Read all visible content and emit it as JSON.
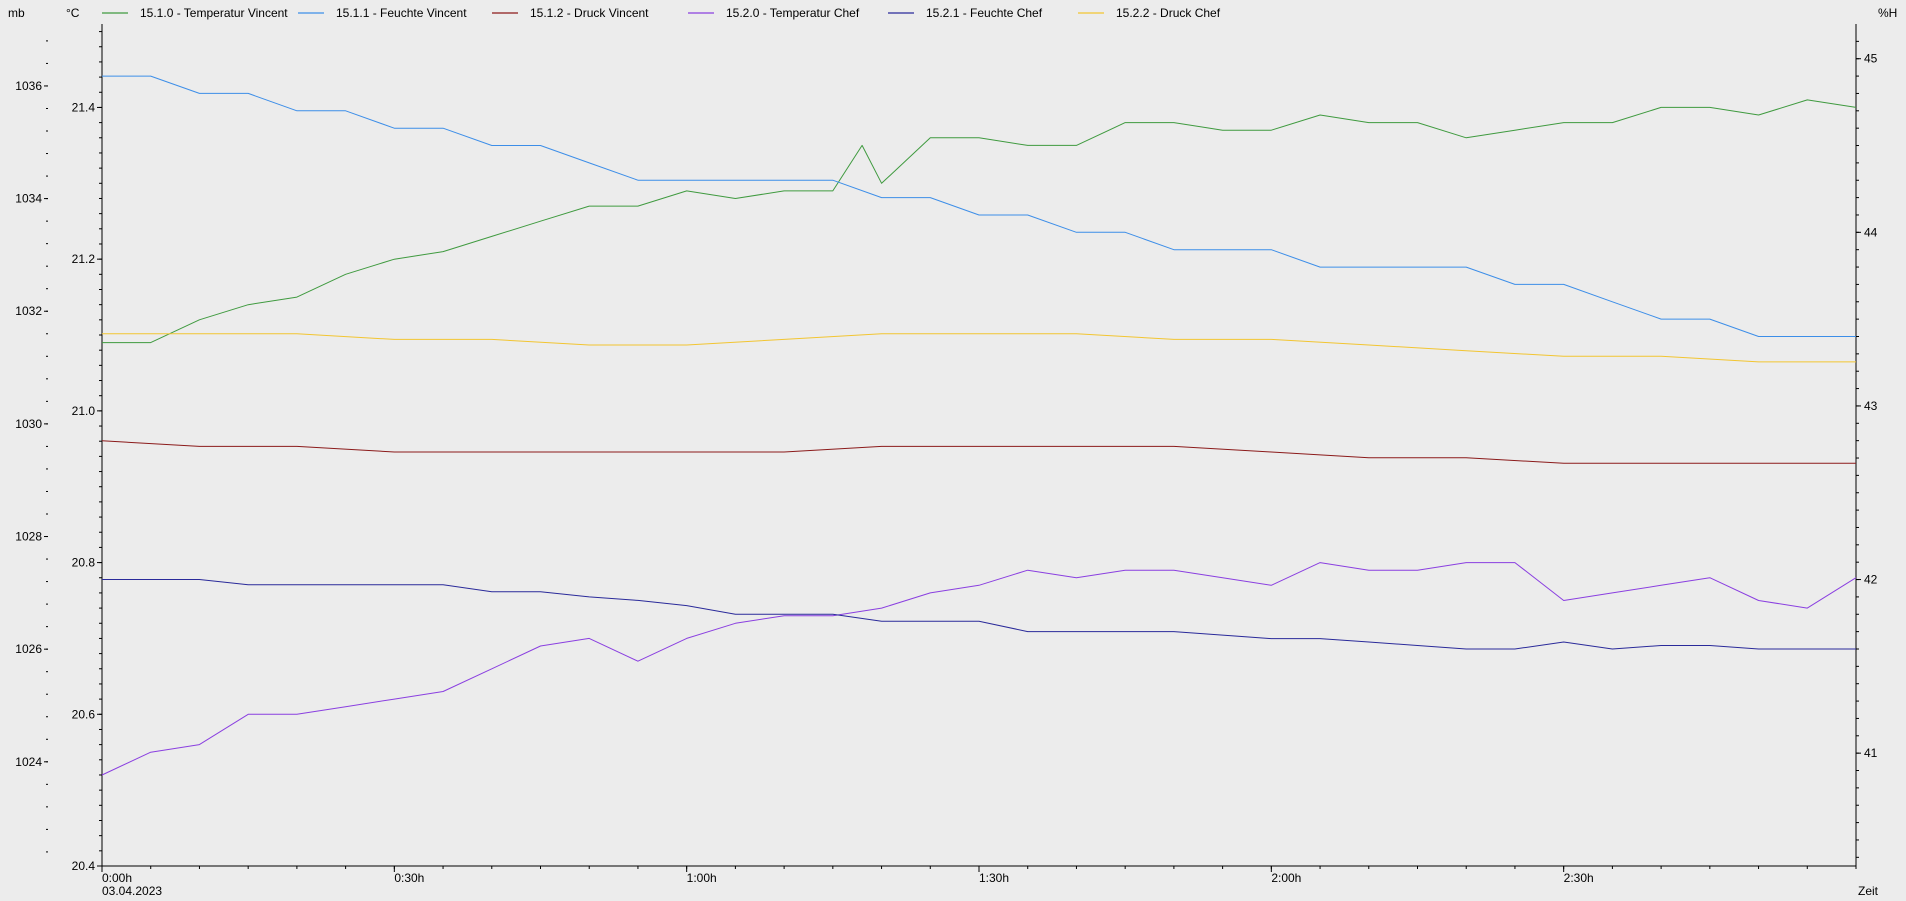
{
  "axis_labels": {
    "mb": "mb",
    "degc": "°C",
    "hum": "%H",
    "time": "Zeit",
    "date": "03.04.2023"
  },
  "legend": [
    {
      "label": "15.1.0 - Temperatur Vincent",
      "color": "#3f9a3f"
    },
    {
      "label": "15.1.1 - Feuchte Vincent",
      "color": "#3d8ee8"
    },
    {
      "label": "15.1.2 - Druck Vincent",
      "color": "#8b1a1a"
    },
    {
      "label": "15.2.0 - Temperatur Chef",
      "color": "#8a3fe0"
    },
    {
      "label": "15.2.1 - Feuchte Chef",
      "color": "#2a2a9a"
    },
    {
      "label": "15.2.2 - Druck Chef",
      "color": "#f2c531"
    }
  ],
  "chart_data": {
    "type": "line",
    "xlabel": "Zeit",
    "x_ticks": [
      "0:00h",
      "0:30h",
      "1:00h",
      "1:30h",
      "2:00h",
      "2:30h"
    ],
    "xlim_minutes": [
      0,
      180
    ],
    "axes": {
      "mb": {
        "label": "mb",
        "ticks": [
          "1024",
          "1026",
          "1028",
          "1030",
          "1032",
          "1034",
          "1036"
        ],
        "ylim": [
          1022.15,
          1037.1
        ]
      },
      "degc": {
        "label": "°C",
        "ticks": [
          "20.4",
          "20.6",
          "20.8",
          "21.0",
          "21.2",
          "21.4"
        ],
        "ylim": [
          20.4,
          21.51
        ]
      },
      "hum": {
        "label": "%H",
        "ticks": [
          "41",
          "42",
          "43",
          "44",
          "45"
        ],
        "ylim": [
          40.35,
          45.2
        ]
      }
    },
    "grid": false,
    "legend_position": "top",
    "series": [
      {
        "name": "15.1.0 - Temperatur Vincent",
        "axis": "degc",
        "color": "#3f9a3f",
        "x": [
          0,
          5,
          10,
          15,
          20,
          25,
          30,
          35,
          40,
          45,
          50,
          55,
          60,
          65,
          70,
          75,
          78,
          80,
          85,
          90,
          95,
          100,
          105,
          110,
          115,
          120,
          125,
          130,
          135,
          140,
          145,
          150,
          155,
          160,
          165,
          170,
          175,
          180
        ],
        "values": [
          21.09,
          21.09,
          21.12,
          21.14,
          21.15,
          21.18,
          21.2,
          21.21,
          21.23,
          21.25,
          21.27,
          21.27,
          21.29,
          21.28,
          21.29,
          21.29,
          21.35,
          21.3,
          21.36,
          21.36,
          21.35,
          21.35,
          21.38,
          21.38,
          21.37,
          21.37,
          21.39,
          21.38,
          21.38,
          21.36,
          21.37,
          21.38,
          21.38,
          21.4,
          21.4,
          21.39,
          21.41,
          21.4
        ]
      },
      {
        "name": "15.1.1 - Feuchte Vincent",
        "axis": "hum",
        "color": "#3d8ee8",
        "x": [
          0,
          5,
          10,
          15,
          20,
          25,
          30,
          35,
          40,
          45,
          50,
          55,
          60,
          65,
          70,
          75,
          80,
          85,
          90,
          95,
          100,
          105,
          110,
          115,
          120,
          125,
          130,
          135,
          140,
          145,
          150,
          155,
          160,
          165,
          170,
          175,
          180
        ],
        "values": [
          44.9,
          44.9,
          44.8,
          44.8,
          44.7,
          44.7,
          44.6,
          44.6,
          44.5,
          44.5,
          44.4,
          44.3,
          44.3,
          44.3,
          44.3,
          44.3,
          44.2,
          44.2,
          44.1,
          44.1,
          44.0,
          44.0,
          43.9,
          43.9,
          43.9,
          43.8,
          43.8,
          43.8,
          43.8,
          43.7,
          43.7,
          43.6,
          43.5,
          43.5,
          43.4,
          43.4,
          43.4
        ]
      },
      {
        "name": "15.1.2 - Druck Vincent",
        "axis": "mb",
        "color": "#8b1a1a",
        "x": [
          0,
          10,
          20,
          30,
          40,
          50,
          60,
          70,
          80,
          90,
          100,
          110,
          120,
          130,
          140,
          150,
          160,
          170,
          180
        ],
        "values": [
          1029.7,
          1029.6,
          1029.6,
          1029.5,
          1029.5,
          1029.5,
          1029.5,
          1029.5,
          1029.6,
          1029.6,
          1029.6,
          1029.6,
          1029.5,
          1029.4,
          1029.4,
          1029.3,
          1029.3,
          1029.3,
          1029.3
        ]
      },
      {
        "name": "15.2.0 - Temperatur Chef",
        "axis": "degc",
        "color": "#8a3fe0",
        "x": [
          0,
          5,
          10,
          15,
          20,
          25,
          30,
          35,
          40,
          45,
          50,
          55,
          60,
          65,
          70,
          75,
          80,
          85,
          90,
          95,
          100,
          105,
          110,
          115,
          120,
          125,
          130,
          135,
          140,
          145,
          150,
          155,
          160,
          165,
          170,
          175,
          180
        ],
        "values": [
          20.52,
          20.55,
          20.56,
          20.6,
          20.6,
          20.61,
          20.62,
          20.63,
          20.66,
          20.69,
          20.7,
          20.67,
          20.7,
          20.72,
          20.73,
          20.73,
          20.74,
          20.76,
          20.77,
          20.79,
          20.78,
          20.79,
          20.79,
          20.78,
          20.77,
          20.8,
          20.79,
          20.79,
          20.8,
          20.8,
          20.75,
          20.76,
          20.77,
          20.78,
          20.75,
          20.74,
          20.78
        ]
      },
      {
        "name": "15.2.1 - Feuchte Chef",
        "axis": "hum",
        "color": "#2a2a9a",
        "x": [
          0,
          5,
          10,
          15,
          20,
          25,
          30,
          35,
          40,
          45,
          50,
          55,
          60,
          65,
          70,
          75,
          80,
          85,
          90,
          95,
          100,
          105,
          110,
          115,
          120,
          125,
          130,
          135,
          140,
          145,
          150,
          155,
          160,
          165,
          170,
          175,
          180
        ],
        "values": [
          42.0,
          42.0,
          42.0,
          41.97,
          41.97,
          41.97,
          41.97,
          41.97,
          41.93,
          41.93,
          41.9,
          41.88,
          41.85,
          41.8,
          41.8,
          41.8,
          41.76,
          41.76,
          41.76,
          41.7,
          41.7,
          41.7,
          41.7,
          41.68,
          41.66,
          41.66,
          41.64,
          41.62,
          41.6,
          41.6,
          41.64,
          41.6,
          41.62,
          41.62,
          41.6,
          41.6,
          41.6
        ]
      },
      {
        "name": "15.2.2 - Druck Chef",
        "axis": "mb",
        "color": "#f2c531",
        "x": [
          0,
          10,
          20,
          30,
          40,
          50,
          60,
          70,
          80,
          90,
          100,
          110,
          120,
          130,
          140,
          150,
          160,
          170,
          180
        ],
        "values": [
          1031.6,
          1031.6,
          1031.6,
          1031.5,
          1031.5,
          1031.4,
          1031.4,
          1031.5,
          1031.6,
          1031.6,
          1031.6,
          1031.5,
          1031.5,
          1031.4,
          1031.3,
          1031.2,
          1031.2,
          1031.1,
          1031.1
        ]
      }
    ]
  }
}
